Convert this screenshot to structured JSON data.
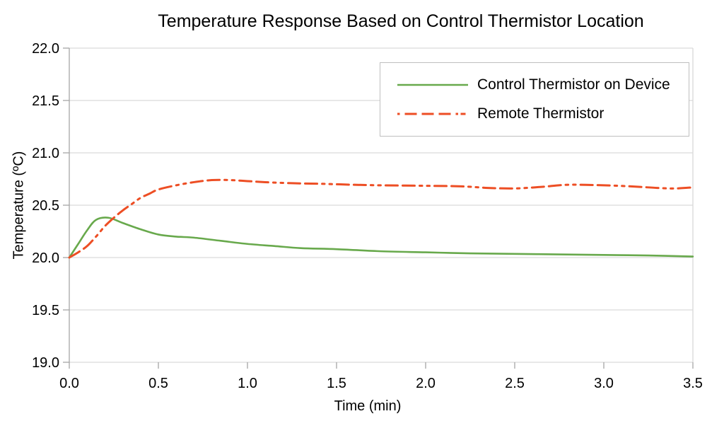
{
  "chart_data": {
    "type": "line",
    "title": "Temperature Response Based on Control Thermistor Location",
    "xlabel": "Time (min)",
    "ylabel": "Temperature (ºC)",
    "xlim": [
      0.0,
      3.5
    ],
    "ylim": [
      19.0,
      22.0
    ],
    "x_ticks": [
      "0.0",
      "0.5",
      "1.0",
      "1.5",
      "2.0",
      "2.5",
      "3.0",
      "3.5"
    ],
    "y_ticks": [
      "19.0",
      "19.5",
      "20.0",
      "20.5",
      "21.0",
      "21.5",
      "22.0"
    ],
    "grid": "horizontal-only",
    "grid_color": "#d9d9d9",
    "axis_color": "#a6a6a6",
    "legend_position": "top-right-inside",
    "series": [
      {
        "id": "control-thermistor-on-device",
        "name": "Control Thermistor on Device",
        "color": "#68a94c",
        "style": "solid",
        "points": [
          [
            0.0,
            20.0
          ],
          [
            0.05,
            20.13
          ],
          [
            0.1,
            20.26
          ],
          [
            0.15,
            20.36
          ],
          [
            0.22,
            20.38
          ],
          [
            0.3,
            20.33
          ],
          [
            0.4,
            20.27
          ],
          [
            0.5,
            20.22
          ],
          [
            0.6,
            20.2
          ],
          [
            0.7,
            20.19
          ],
          [
            0.85,
            20.16
          ],
          [
            1.0,
            20.13
          ],
          [
            1.15,
            20.11
          ],
          [
            1.3,
            20.09
          ],
          [
            1.5,
            20.08
          ],
          [
            1.75,
            20.06
          ],
          [
            2.0,
            20.05
          ],
          [
            2.25,
            20.04
          ],
          [
            2.5,
            20.035
          ],
          [
            2.75,
            20.03
          ],
          [
            3.0,
            20.025
          ],
          [
            3.25,
            20.02
          ],
          [
            3.5,
            20.01
          ]
        ]
      },
      {
        "id": "remote-thermistor",
        "name": "Remote Thermistor",
        "color": "#ed4e24",
        "style": "long-dash-dot-dot",
        "points": [
          [
            0.0,
            20.0
          ],
          [
            0.05,
            20.05
          ],
          [
            0.1,
            20.11
          ],
          [
            0.15,
            20.2
          ],
          [
            0.2,
            20.3
          ],
          [
            0.25,
            20.38
          ],
          [
            0.3,
            20.45
          ],
          [
            0.35,
            20.51
          ],
          [
            0.4,
            20.57
          ],
          [
            0.45,
            20.61
          ],
          [
            0.5,
            20.65
          ],
          [
            0.6,
            20.69
          ],
          [
            0.7,
            20.72
          ],
          [
            0.8,
            20.74
          ],
          [
            0.9,
            20.74
          ],
          [
            1.0,
            20.73
          ],
          [
            1.1,
            20.72
          ],
          [
            1.25,
            20.71
          ],
          [
            1.4,
            20.705
          ],
          [
            1.5,
            20.7
          ],
          [
            1.6,
            20.695
          ],
          [
            1.75,
            20.69
          ],
          [
            2.0,
            20.685
          ],
          [
            2.2,
            20.68
          ],
          [
            2.35,
            20.665
          ],
          [
            2.5,
            20.66
          ],
          [
            2.65,
            20.675
          ],
          [
            2.8,
            20.695
          ],
          [
            3.0,
            20.69
          ],
          [
            3.15,
            20.68
          ],
          [
            3.3,
            20.665
          ],
          [
            3.4,
            20.66
          ],
          [
            3.5,
            20.67
          ]
        ]
      }
    ]
  }
}
